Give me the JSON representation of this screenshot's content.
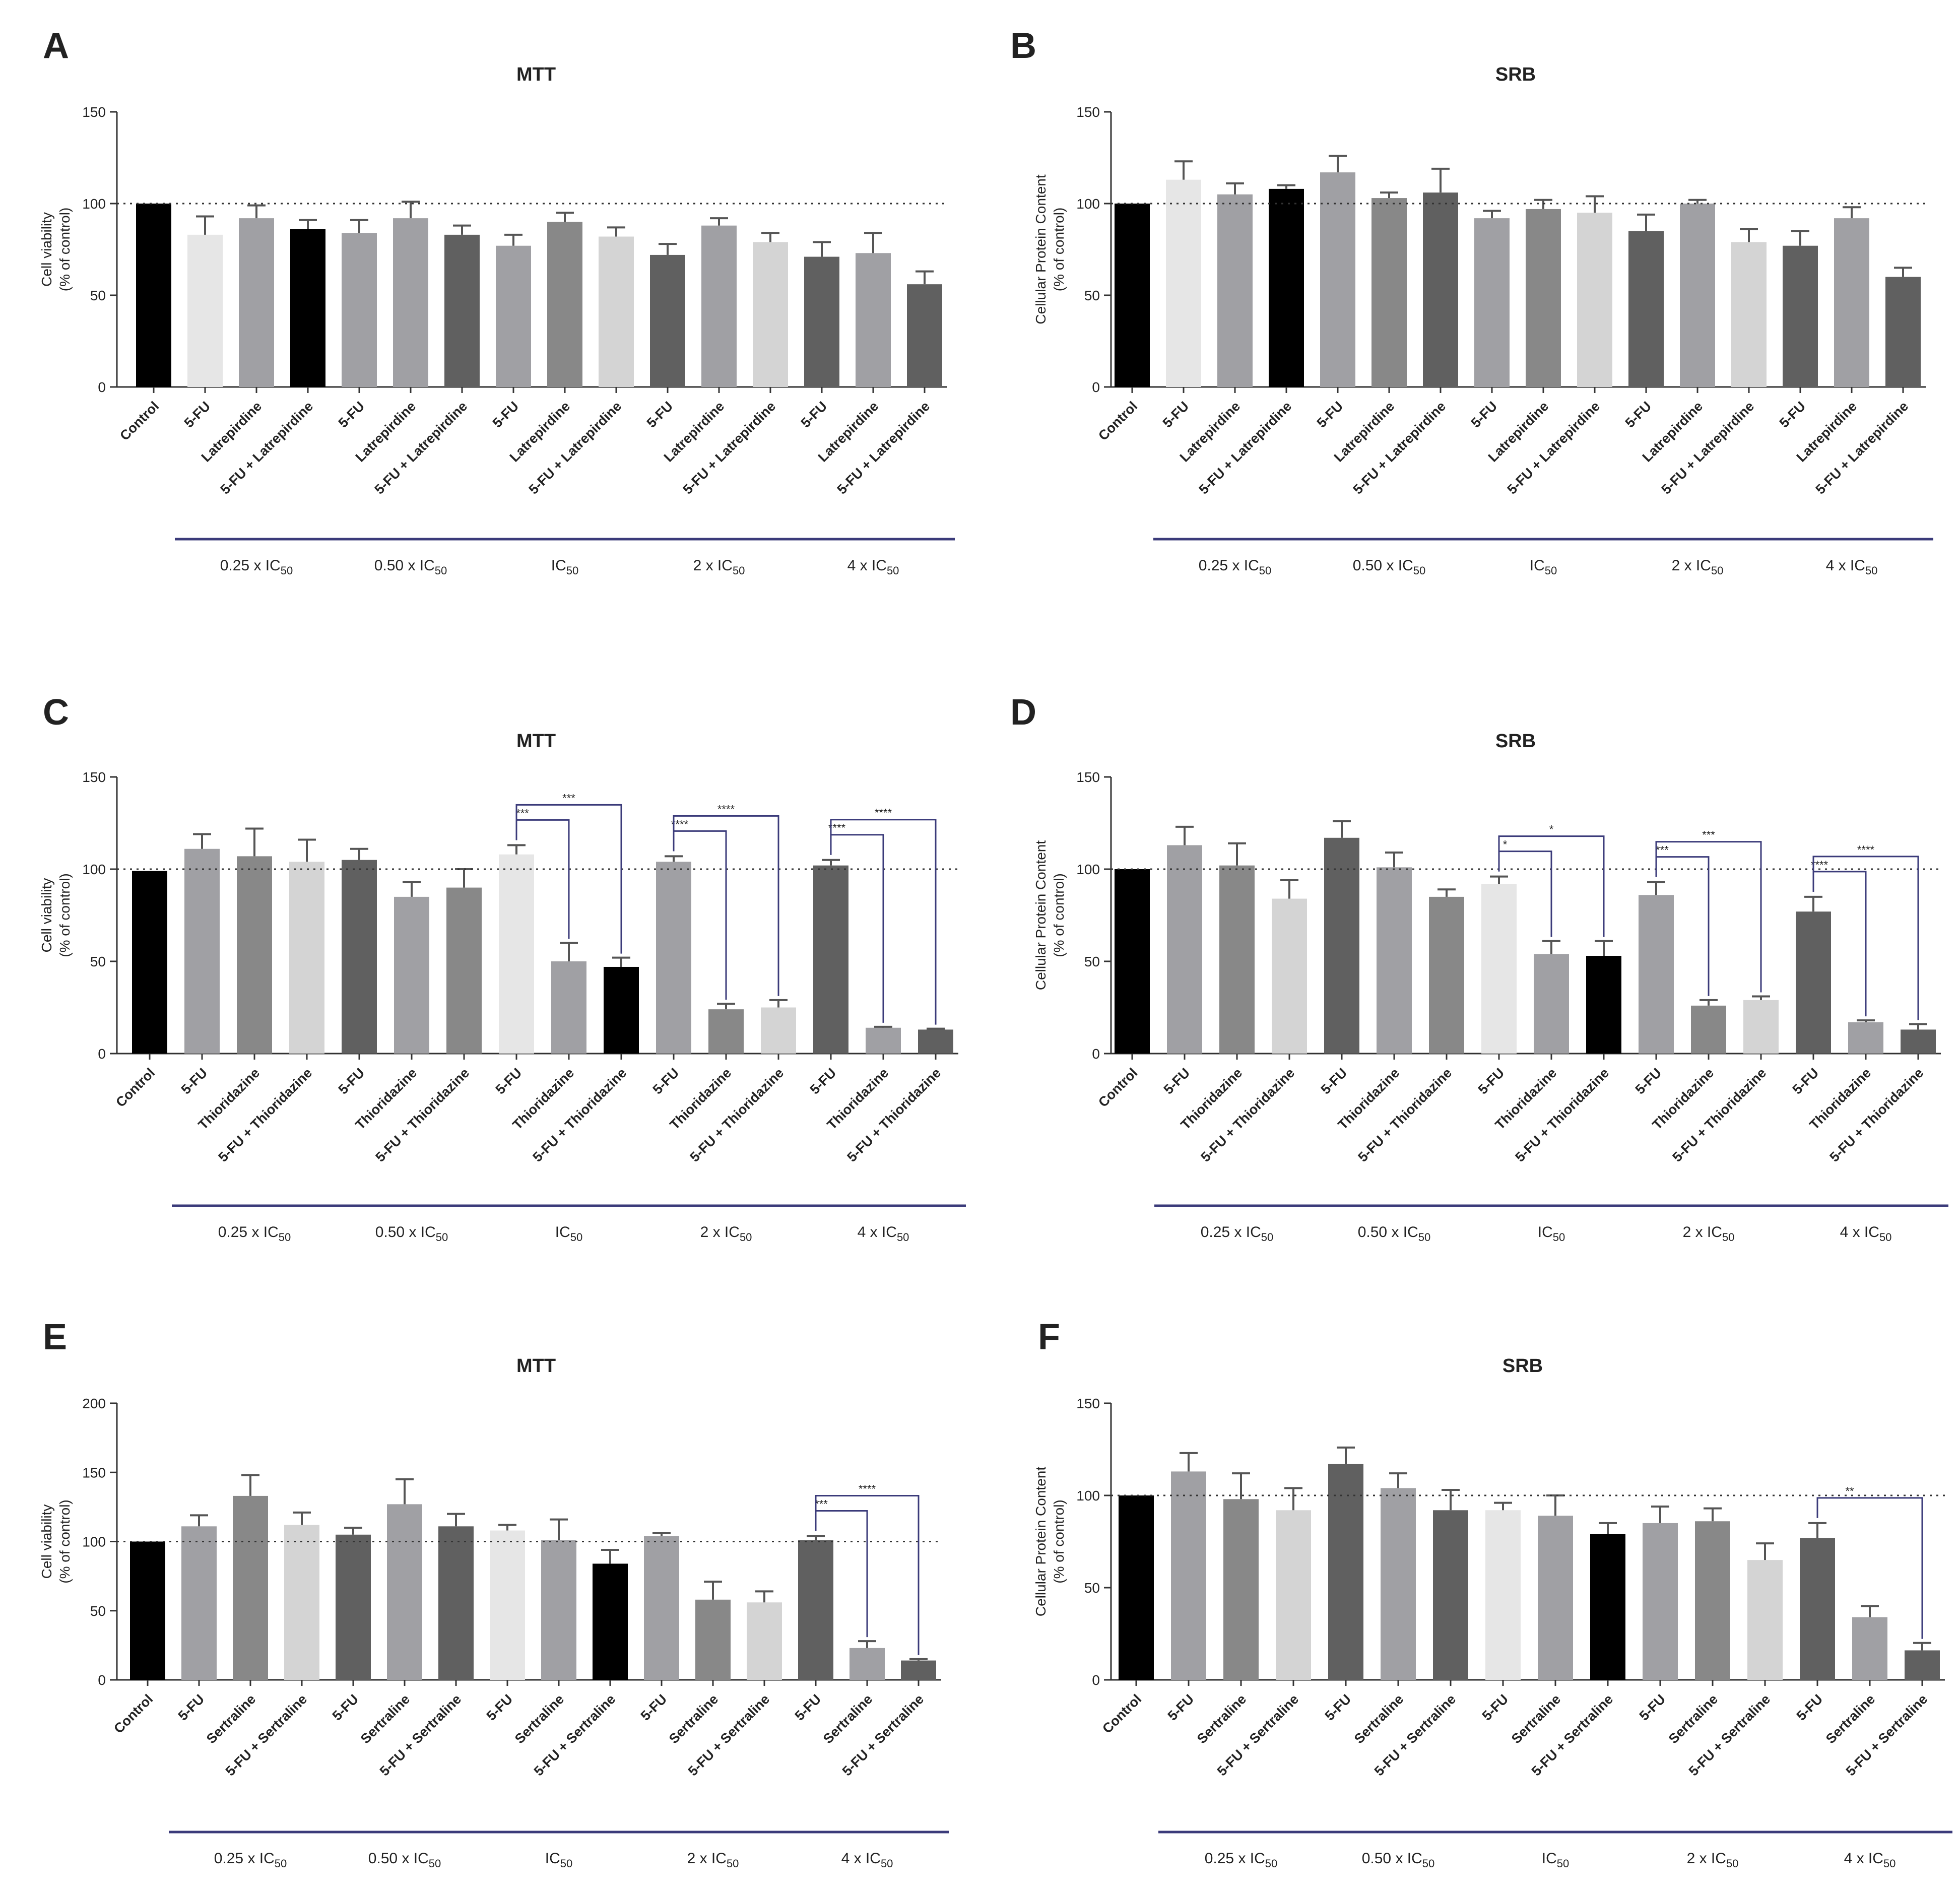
{
  "figure": {
    "group_labels": [
      "0.25 x IC",
      "0.50 x IC",
      "IC",
      "2 x IC",
      "4 x IC"
    ],
    "group_subscript": "50"
  },
  "chart_data": [
    {
      "type": "bar",
      "panel": "A",
      "title": "MTT",
      "ylabel": [
        "Cell viability",
        "(% of control)"
      ],
      "ylim": [
        0,
        150
      ],
      "yticks": [
        0,
        50,
        100,
        150
      ],
      "reference_line": 100,
      "categories": [
        "Control",
        "5-FU",
        "Latrepirdine",
        "5-FU + Latrepirdine",
        "5-FU",
        "Latrepirdine",
        "5-FU + Latrepirdine",
        "5-FU",
        "Latrepirdine",
        "5-FU + Latrepirdine",
        "5-FU",
        "Latrepirdine",
        "5-FU + Latrepirdine",
        "5-FU",
        "Latrepirdine",
        "5-FU + Latrepirdine"
      ],
      "values": [
        100,
        83,
        92,
        86,
        84,
        92,
        83,
        77,
        90,
        82,
        72,
        88,
        79,
        71,
        73,
        56
      ],
      "errors": [
        0,
        10,
        7,
        5,
        7,
        9,
        5,
        6,
        5,
        5,
        6,
        4,
        5,
        8,
        11,
        7
      ],
      "colors": [
        "#000000",
        "#e6e6e6",
        "#a0a0a4",
        "#000000",
        "#a0a0a4",
        "#a0a0a4",
        "#606060",
        "#a0a0a4",
        "#888888",
        "#d4d4d4",
        "#606060",
        "#a0a0a4",
        "#d4d4d4",
        "#606060",
        "#a0a0a4",
        "#606060"
      ],
      "significance": []
    },
    {
      "type": "bar",
      "panel": "B",
      "title": "SRB",
      "ylabel": [
        "Cellular Protein Content",
        "(% of control)"
      ],
      "ylim": [
        0,
        150
      ],
      "yticks": [
        0,
        50,
        100,
        150
      ],
      "reference_line": 100,
      "categories": [
        "Control",
        "5-FU",
        "Latrepirdine",
        "5-FU + Latrepirdine",
        "5-FU",
        "Latrepirdine",
        "5-FU + Latrepirdine",
        "5-FU",
        "Latrepirdine",
        "5-FU + Latrepirdine",
        "5-FU",
        "Latrepirdine",
        "5-FU + Latrepirdine",
        "5-FU",
        "Latrepirdine",
        "5-FU + Latrepirdine"
      ],
      "values": [
        100,
        113,
        105,
        108,
        117,
        103,
        106,
        92,
        97,
        95,
        85,
        100,
        79,
        77,
        92,
        60
      ],
      "errors": [
        0,
        10,
        6,
        2,
        9,
        3,
        13,
        4,
        5,
        9,
        9,
        2,
        7,
        8,
        6,
        5
      ],
      "colors": [
        "#000000",
        "#e6e6e6",
        "#a0a0a4",
        "#000000",
        "#a0a0a4",
        "#888888",
        "#606060",
        "#a0a0a4",
        "#888888",
        "#d4d4d4",
        "#606060",
        "#a0a0a4",
        "#d4d4d4",
        "#606060",
        "#a0a0a4",
        "#606060"
      ],
      "significance": []
    },
    {
      "type": "bar",
      "panel": "C",
      "title": "MTT",
      "ylabel": [
        "Cell viability",
        "(% of control)"
      ],
      "ylim": [
        0,
        150
      ],
      "yticks": [
        0,
        50,
        100,
        150
      ],
      "reference_line": 100,
      "categories": [
        "Control",
        "5-FU",
        "Thioridazine",
        "5-FU + Thioridazine",
        "5-FU",
        "Thioridazine",
        "5-FU + Thioridazine",
        "5-FU",
        "Thioridazine",
        "5-FU + Thioridazine",
        "5-FU",
        "Thioridazine",
        "5-FU + Thioridazine",
        "5-FU",
        "Thioridazine",
        "5-FU + Thioridazine"
      ],
      "values": [
        99,
        111,
        107,
        104,
        105,
        85,
        90,
        108,
        50,
        47,
        104,
        24,
        25,
        102,
        14,
        13
      ],
      "errors": [
        0,
        8,
        15,
        12,
        6,
        8,
        10,
        5,
        10,
        5,
        3,
        3,
        4,
        3,
        0.5,
        0.5
      ],
      "colors": [
        "#000000",
        "#a0a0a4",
        "#888888",
        "#d4d4d4",
        "#606060",
        "#a0a0a4",
        "#888888",
        "#e6e6e6",
        "#a0a0a4",
        "#000000",
        "#a0a0a4",
        "#888888",
        "#d4d4d4",
        "#606060",
        "#a0a0a4",
        "#606060"
      ],
      "significance": [
        {
          "from": 7,
          "to": 8,
          "label": "***",
          "level": 1
        },
        {
          "from": 7,
          "to": 9,
          "label": "***",
          "level": 2
        },
        {
          "from": 10,
          "to": 11,
          "label": "****",
          "level": 1
        },
        {
          "from": 10,
          "to": 12,
          "label": "****",
          "level": 2
        },
        {
          "from": 13,
          "to": 14,
          "label": "****",
          "level": 1
        },
        {
          "from": 13,
          "to": 15,
          "label": "****",
          "level": 2
        }
      ]
    },
    {
      "type": "bar",
      "panel": "D",
      "title": "SRB",
      "ylabel": [
        "Cellular Protein Content",
        "(% of control)"
      ],
      "ylim": [
        0,
        150
      ],
      "yticks": [
        0,
        50,
        100,
        150
      ],
      "reference_line": 100,
      "categories": [
        "Control",
        "5-FU",
        "Thioridazine",
        "5-FU + Thioridazine",
        "5-FU",
        "Thioridazine",
        "5-FU + Thioridazine",
        "5-FU",
        "Thioridazine",
        "5-FU + Thioridazine",
        "5-FU",
        "Thioridazine",
        "5-FU + Thioridazine",
        "5-FU",
        "Thioridazine",
        "5-FU + Thioridazine"
      ],
      "values": [
        100,
        113,
        102,
        84,
        117,
        101,
        85,
        92,
        54,
        53,
        86,
        26,
        29,
        77,
        17,
        13
      ],
      "errors": [
        0,
        10,
        12,
        10,
        9,
        8,
        4,
        4,
        7,
        8,
        7,
        3,
        2,
        8,
        1,
        3
      ],
      "colors": [
        "#000000",
        "#a0a0a4",
        "#888888",
        "#d4d4d4",
        "#606060",
        "#a0a0a4",
        "#888888",
        "#e6e6e6",
        "#a0a0a4",
        "#000000",
        "#a0a0a4",
        "#888888",
        "#d4d4d4",
        "#606060",
        "#a0a0a4",
        "#606060"
      ],
      "significance": [
        {
          "from": 7,
          "to": 8,
          "label": "*",
          "level": 1
        },
        {
          "from": 7,
          "to": 9,
          "label": "*",
          "level": 2
        },
        {
          "from": 10,
          "to": 11,
          "label": "***",
          "level": 1
        },
        {
          "from": 10,
          "to": 12,
          "label": "***",
          "level": 2
        },
        {
          "from": 13,
          "to": 14,
          "label": "****",
          "level": 1
        },
        {
          "from": 13,
          "to": 15,
          "label": "****",
          "level": 2
        }
      ]
    },
    {
      "type": "bar",
      "panel": "E",
      "title": "MTT",
      "ylabel": [
        "Cell viability",
        "(% of control)"
      ],
      "ylim": [
        0,
        200
      ],
      "yticks": [
        0,
        50,
        100,
        150,
        200
      ],
      "reference_line": 100,
      "categories": [
        "Control",
        "5-FU",
        "Sertraline",
        "5-FU + Sertraline",
        "5-FU",
        "Sertraline",
        "5-FU + Sertraline",
        "5-FU",
        "Sertraline",
        "5-FU + Sertraline",
        "5-FU",
        "Sertraline",
        "5-FU + Sertraline",
        "5-FU",
        "Sertraline",
        "5-FU + Sertraline"
      ],
      "values": [
        100,
        111,
        133,
        112,
        105,
        127,
        111,
        108,
        101,
        84,
        104,
        58,
        56,
        101,
        23,
        14
      ],
      "errors": [
        0,
        8,
        15,
        9,
        5,
        18,
        9,
        4,
        15,
        10,
        2,
        13,
        8,
        3,
        5,
        1
      ],
      "colors": [
        "#000000",
        "#a0a0a4",
        "#888888",
        "#d4d4d4",
        "#606060",
        "#a0a0a4",
        "#606060",
        "#e6e6e6",
        "#a0a0a4",
        "#000000",
        "#a0a0a4",
        "#888888",
        "#d4d4d4",
        "#606060",
        "#a0a0a4",
        "#606060"
      ],
      "significance": [
        {
          "from": 13,
          "to": 14,
          "label": "***",
          "level": 1
        },
        {
          "from": 13,
          "to": 15,
          "label": "****",
          "level": 2
        }
      ]
    },
    {
      "type": "bar",
      "panel": "F",
      "title": "SRB",
      "ylabel": [
        "Cellular Protein Content",
        "(% of control)"
      ],
      "ylim": [
        0,
        150
      ],
      "yticks": [
        0,
        50,
        100,
        150
      ],
      "reference_line": 100,
      "categories": [
        "Control",
        "5-FU",
        "Sertraline",
        "5-FU + Sertraline",
        "5-FU",
        "Sertraline",
        "5-FU + Sertraline",
        "5-FU",
        "Sertraline",
        "5-FU + Sertraline",
        "5-FU",
        "Sertraline",
        "5-FU + Sertraline",
        "5-FU",
        "Sertraline",
        "5-FU + Sertraline"
      ],
      "values": [
        100,
        113,
        98,
        92,
        117,
        104,
        92,
        92,
        89,
        79,
        85,
        86,
        65,
        77,
        34,
        16
      ],
      "errors": [
        0,
        10,
        14,
        12,
        9,
        8,
        11,
        4,
        11,
        6,
        9,
        7,
        9,
        8,
        6,
        4
      ],
      "colors": [
        "#000000",
        "#a0a0a4",
        "#888888",
        "#d4d4d4",
        "#606060",
        "#a0a0a4",
        "#606060",
        "#e6e6e6",
        "#a0a0a4",
        "#000000",
        "#a0a0a4",
        "#888888",
        "#d4d4d4",
        "#606060",
        "#a0a0a4",
        "#606060"
      ],
      "significance": [
        {
          "from": 13,
          "to": 15,
          "label": "**",
          "level": 1
        }
      ]
    }
  ]
}
